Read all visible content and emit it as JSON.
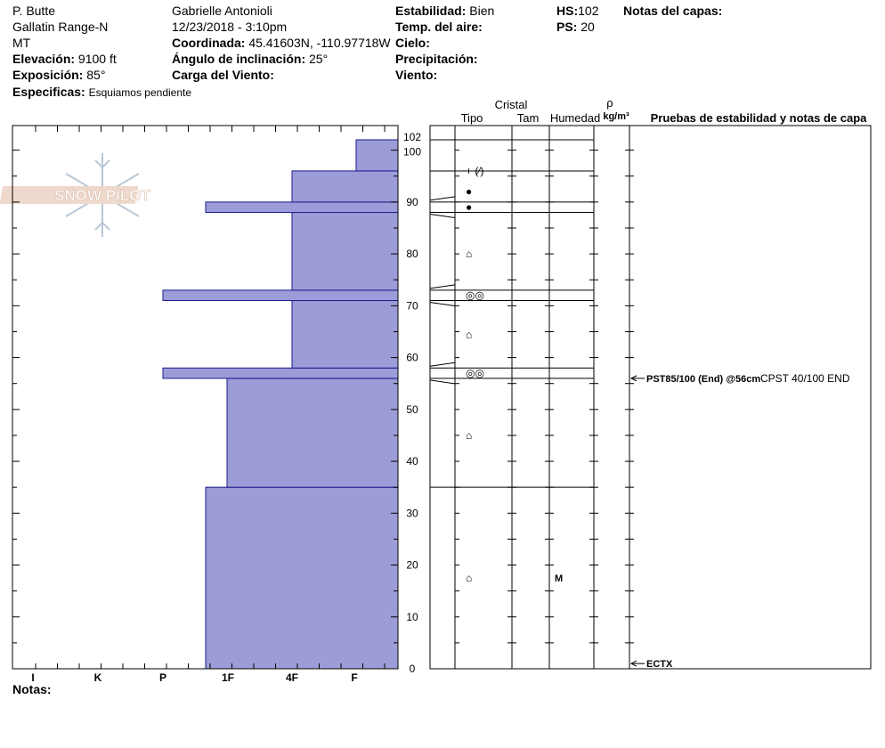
{
  "header": {
    "location": "P. Butte",
    "range": "Gallatin Range-N",
    "state": "MT",
    "elevation_label": "Elevación:",
    "elevation_value": "9100 ft",
    "aspect_label": "Exposición:",
    "aspect_value": "85°",
    "specifics_label": "Especificas:",
    "specifics_value": "Esquiamos pendiente",
    "observer": "Gabrielle Antonioli",
    "datetime": "12/23/2018 - 3:10pm",
    "coord_label": "Coordinada:",
    "coord_value": "45.41603N, -110.97718W",
    "slope_label": "Ángulo de inclinación:",
    "slope_value": "25°",
    "wind_load_label": "Carga del Viento:",
    "stability_label": "Estabilidad:",
    "stability_value": "Bien",
    "air_temp_label": "Temp. del aire:",
    "sky_label": "Cielo:",
    "precip_label": "Precipitación:",
    "wind_label": "Viento:",
    "hs_label": "HS:",
    "hs_value": "102",
    "ps_label": "PS:",
    "ps_value": "20",
    "layer_notes_label": "Notas del capas:"
  },
  "notes_label": "Notas:",
  "logo_text": "SNOW PILOT",
  "columns": {
    "crystal": "Cristal",
    "type": "Tipo",
    "size": "Tam",
    "moisture": "Humedad",
    "rho": "ρ",
    "density_unit": "kg/m³",
    "tests": "Pruebas de estabilidad y notas de capa"
  },
  "colors": {
    "hardness_fill": "#9c9cd8",
    "hardness_stroke": "#1a1a8c"
  },
  "chart_data": {
    "type": "bar",
    "title": "",
    "xlabel": "",
    "ylabel": "",
    "hardness_ticks": [
      "I",
      "K",
      "P",
      "1F",
      "4F",
      "F"
    ],
    "ylim": [
      0,
      102
    ],
    "y_ticks": [
      0,
      10,
      20,
      30,
      40,
      50,
      60,
      70,
      80,
      90,
      100,
      102
    ],
    "layers": [
      {
        "bottom": 0,
        "top": 35,
        "hardness": "1F"
      },
      {
        "bottom": 35,
        "top": 56,
        "hardness": "1F+"
      },
      {
        "bottom": 56,
        "top": 58,
        "hardness": "P"
      },
      {
        "bottom": 58,
        "top": 71,
        "hardness": "4F"
      },
      {
        "bottom": 71,
        "top": 73,
        "hardness": "P"
      },
      {
        "bottom": 73,
        "top": 88,
        "hardness": "4F"
      },
      {
        "bottom": 88,
        "top": 90,
        "hardness": "1F"
      },
      {
        "bottom": 90,
        "top": 96,
        "hardness": "4F"
      },
      {
        "bottom": 96,
        "top": 102,
        "hardness": "F"
      }
    ],
    "crystal_rows": [
      {
        "y": 96,
        "symbol": "+ (⁄)"
      },
      {
        "y": 92,
        "symbol": "●"
      },
      {
        "y": 89,
        "symbol": "●"
      },
      {
        "y": 80,
        "symbol": "⌂"
      },
      {
        "y": 72,
        "symbol": "◎◎"
      },
      {
        "y": 64.5,
        "symbol": "⌂"
      },
      {
        "y": 57,
        "symbol": "◎◎"
      },
      {
        "y": 45,
        "symbol": "⌂"
      },
      {
        "y": 17.5,
        "symbol": "⌂"
      }
    ],
    "moisture_rows": [
      {
        "y": 17.5,
        "value": "M"
      }
    ],
    "tests": [
      {
        "y": 56,
        "label": "PST85/100 (End) @56cm",
        "extra": "CPST 40/100 END"
      },
      {
        "y": 1,
        "label": "ECTX",
        "extra": ""
      }
    ]
  }
}
